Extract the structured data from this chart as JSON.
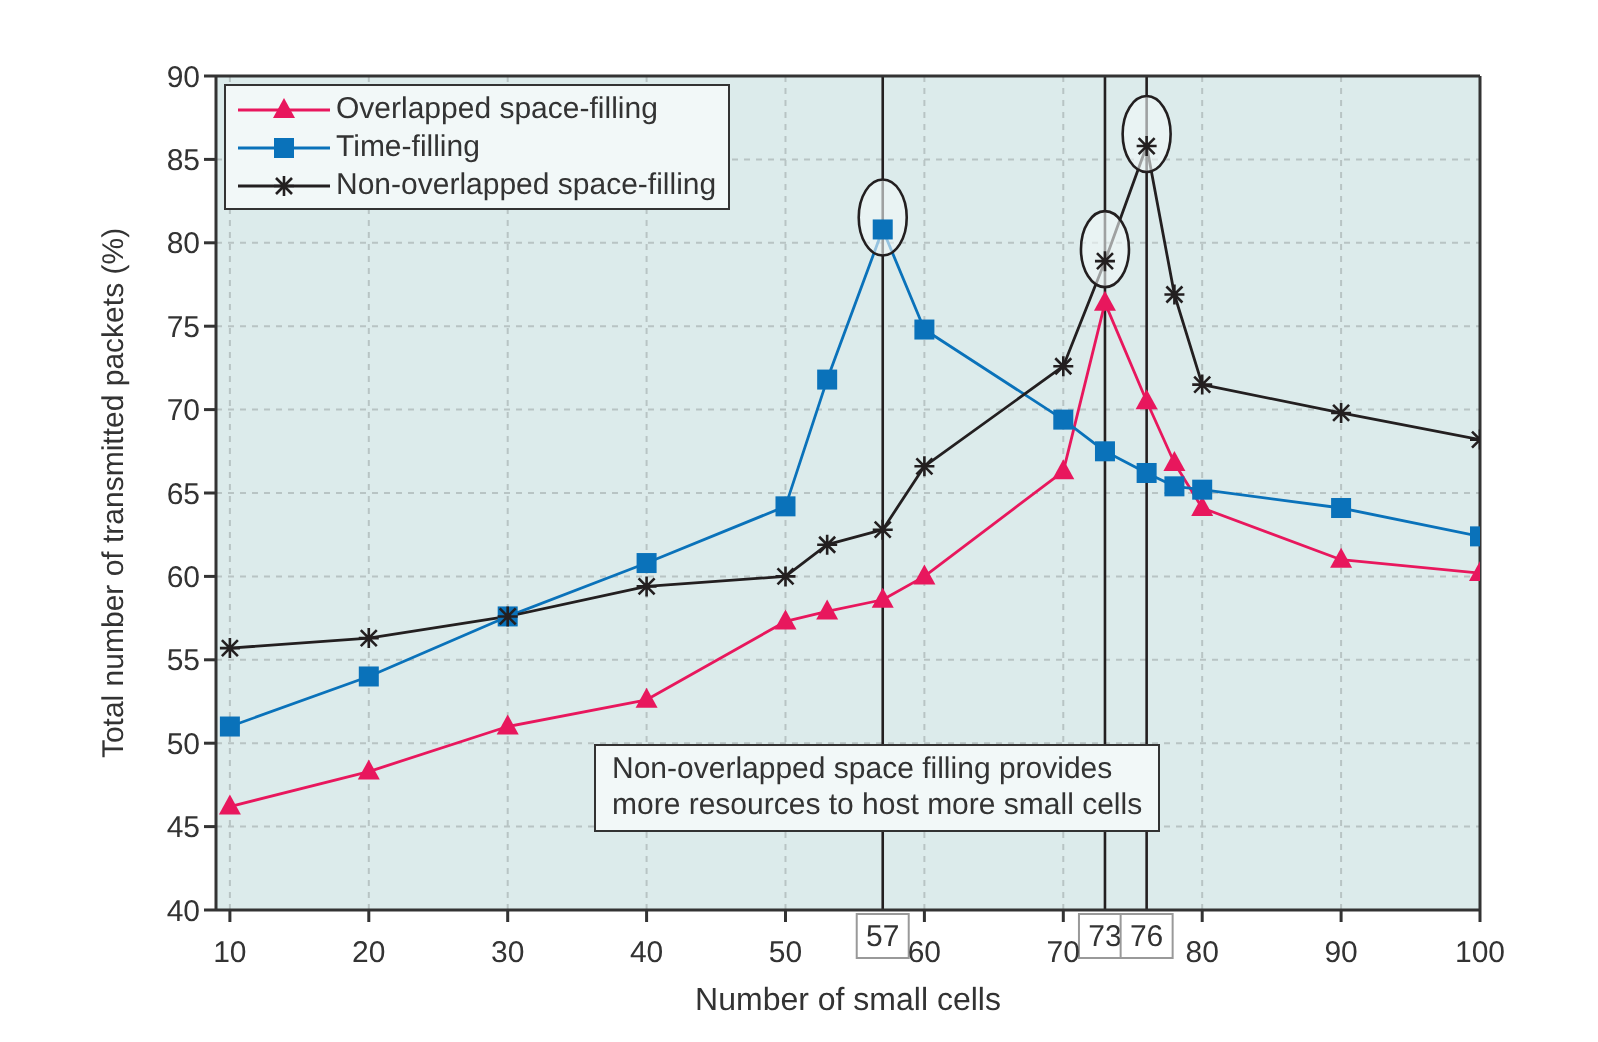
{
  "chart_data": {
    "type": "line",
    "xlabel": "Number of small cells",
    "ylabel": "Total number of transmitted packets (%)",
    "x": [
      10,
      20,
      30,
      40,
      50,
      53,
      57,
      60,
      70,
      73,
      76,
      78,
      80,
      90,
      100
    ],
    "series": [
      {
        "name": "Overlapped space-filling",
        "color": "#e8175d",
        "marker": "triangle",
        "values": [
          46.2,
          48.3,
          51,
          52.6,
          57.3,
          57.9,
          58.6,
          60,
          66.3,
          76.4,
          70.5,
          66.8,
          64.1,
          61,
          60.2
        ]
      },
      {
        "name": "Time-filling",
        "color": "#0a72ba",
        "marker": "square",
        "values": [
          51,
          54,
          57.6,
          60.8,
          64.2,
          71.8,
          80.8,
          74.8,
          69.4,
          67.5,
          66.2,
          65.4,
          65.2,
          64.1,
          62.4
        ]
      },
      {
        "name": "Non-overlapped space-filling",
        "color": "#231f20",
        "marker": "cross",
        "values": [
          55.7,
          56.3,
          57.6,
          59.4,
          60,
          61.9,
          62.8,
          66.6,
          72.6,
          78.9,
          85.8,
          76.9,
          71.5,
          69.8,
          68.2
        ]
      }
    ],
    "xlim": [
      9,
      100
    ],
    "xticks": [
      10,
      20,
      30,
      40,
      50,
      60,
      70,
      80,
      90,
      100
    ],
    "ylim": [
      40,
      90
    ],
    "yticks": [
      40,
      45,
      50,
      55,
      60,
      65,
      70,
      75,
      80,
      85,
      90
    ],
    "ref_lines": [
      {
        "axis": "x",
        "value": 57,
        "label": "57",
        "color": "#231f20"
      },
      {
        "axis": "x",
        "value": 73,
        "label": "73",
        "color": "#231f20"
      },
      {
        "axis": "x",
        "value": 76,
        "label": "76",
        "color": "#231f20"
      }
    ],
    "annotations": [
      "Non-overlapped space filling provides\nmore resources to host more small cells"
    ],
    "grid": true,
    "legend": "top left",
    "line_style": "solid"
  }
}
